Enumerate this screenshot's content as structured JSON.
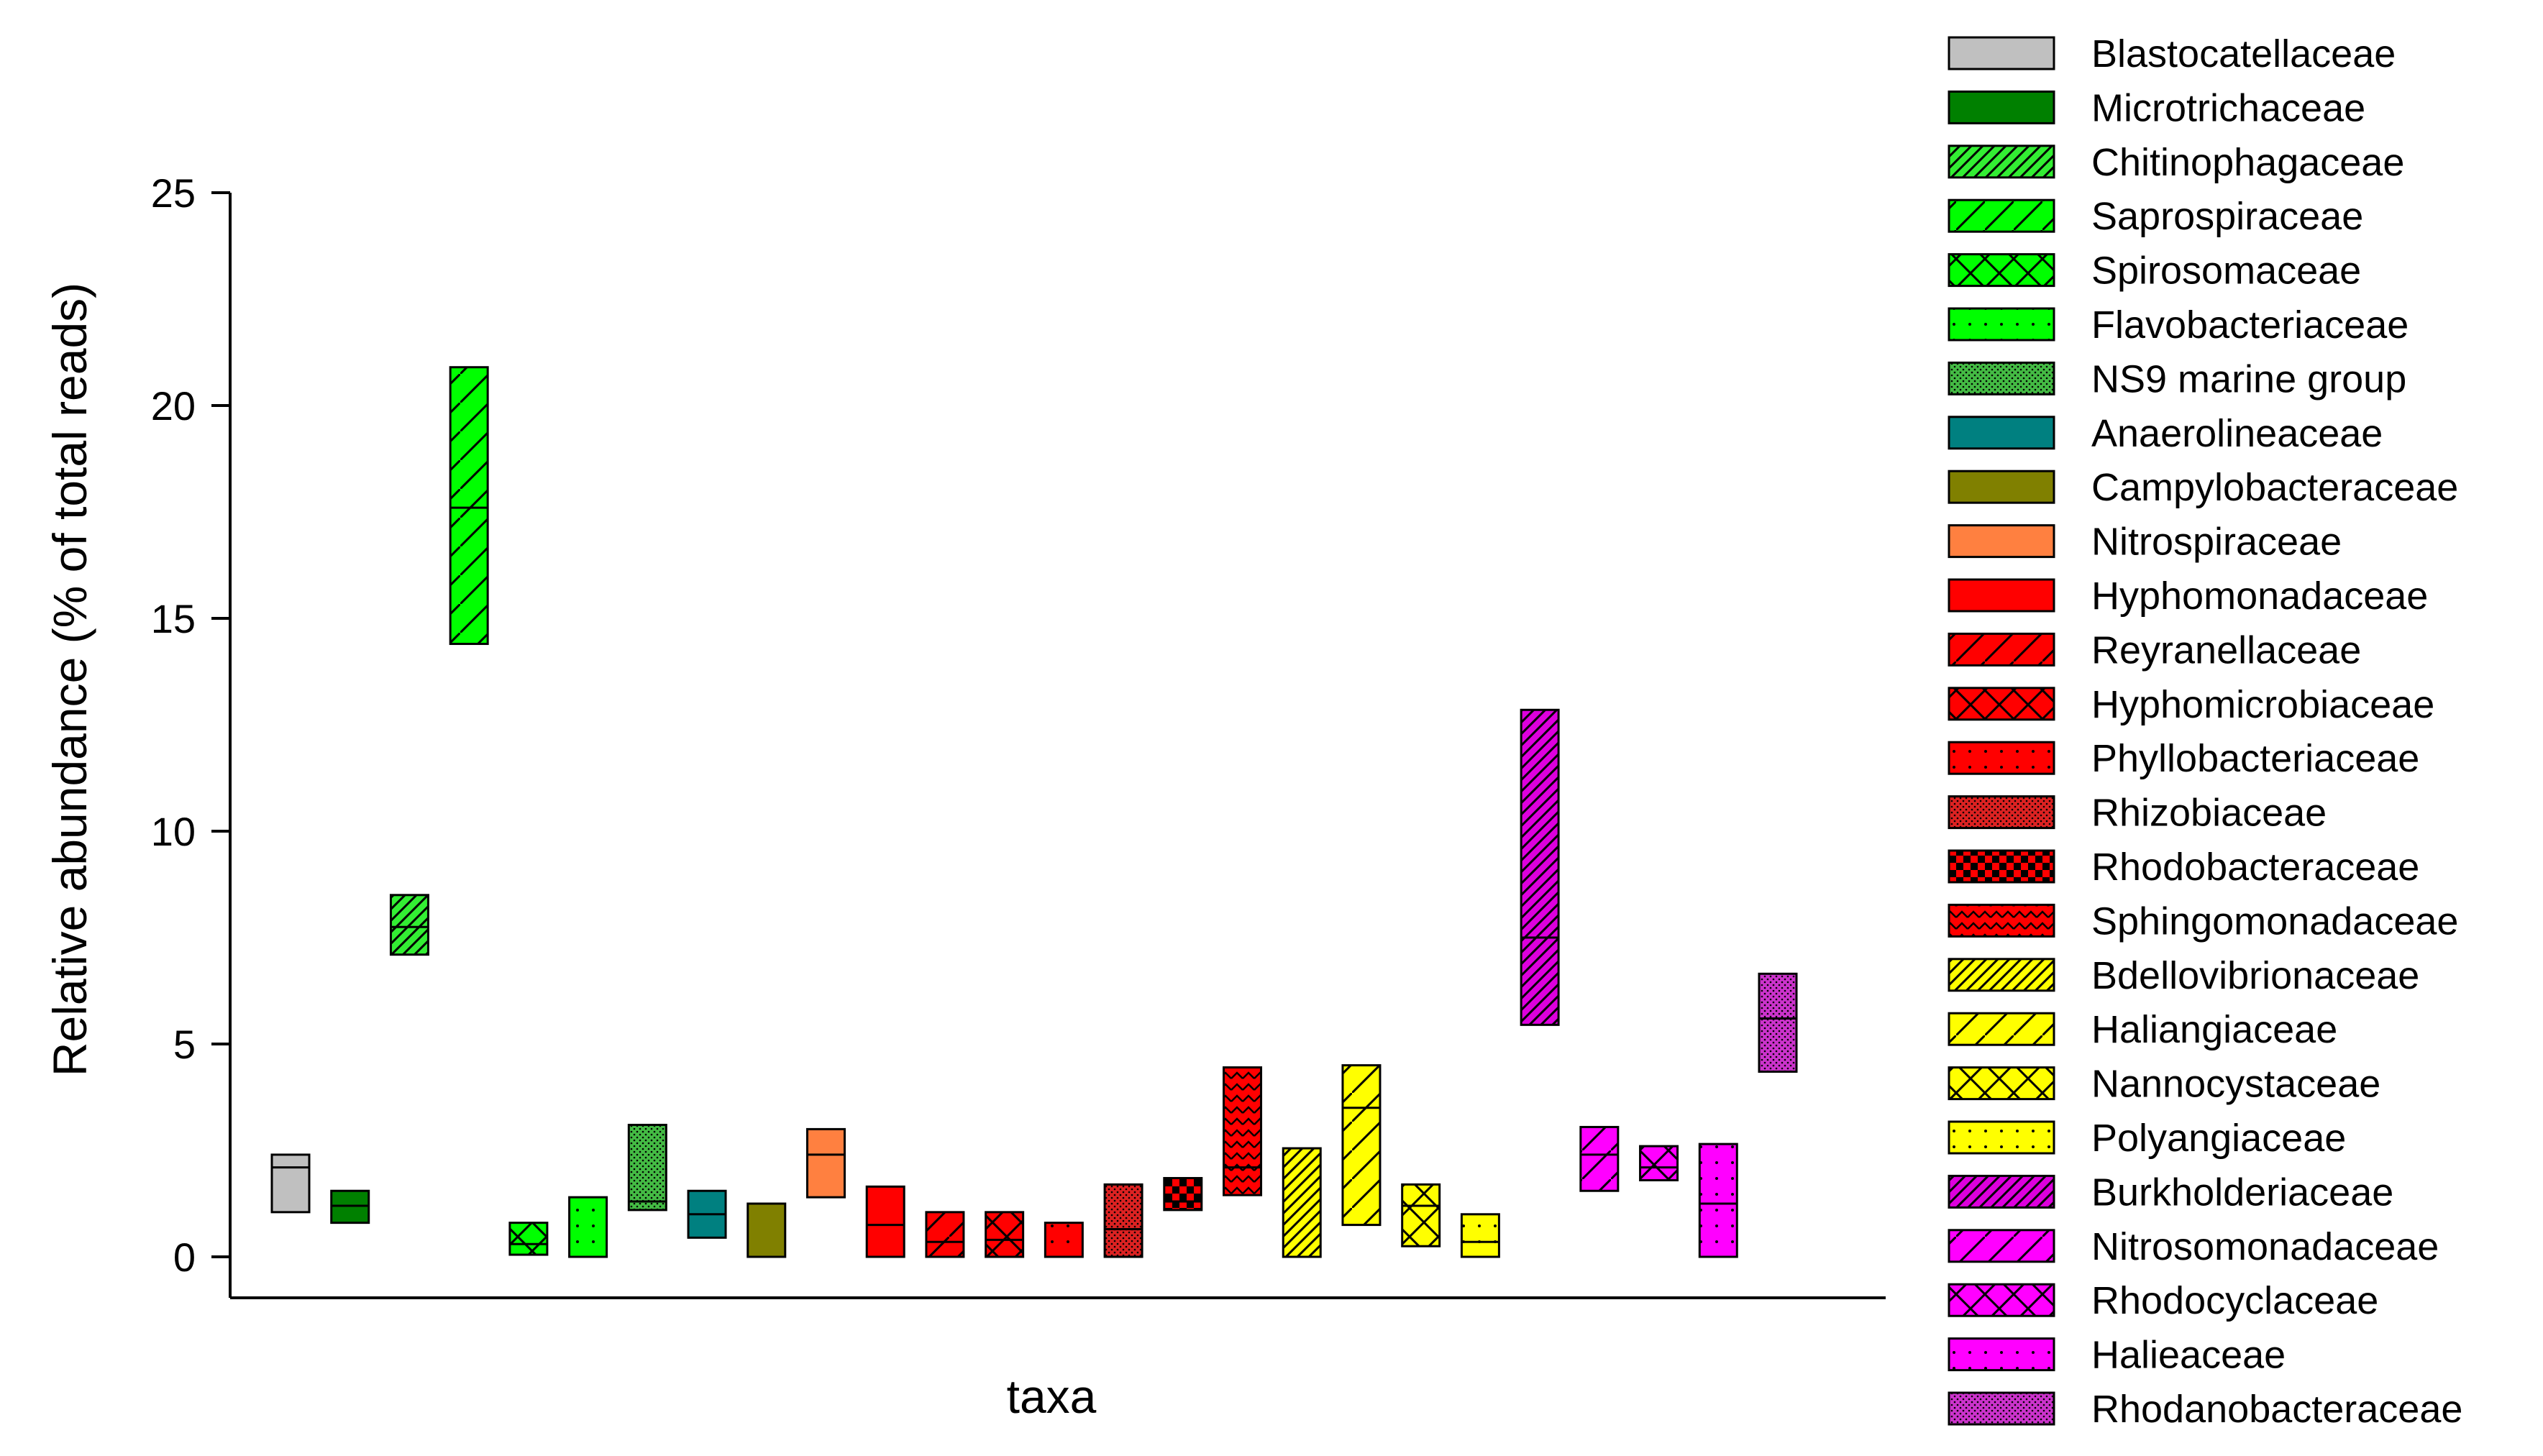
{
  "chart_data": {
    "type": "floating_bar",
    "xlabel": "taxa",
    "ylabel": "Relative abundance (% of total reads)",
    "ylim": [
      0,
      25
    ],
    "yticks": [
      0,
      5,
      10,
      15,
      20,
      25
    ],
    "grid": false,
    "legend_position": "right",
    "series": [
      {
        "name": "Blastocatellaceae",
        "color": "#c0c0c0",
        "pattern": "solid",
        "min": 1.05,
        "median": 2.1,
        "max": 2.4
      },
      {
        "name": "Microtrichaceae",
        "color": "#008000",
        "pattern": "solid",
        "min": 0.8,
        "median": 1.2,
        "max": 1.55
      },
      {
        "name": "Chitinophagaceae",
        "color": "#33ee33",
        "pattern": "dense-diag",
        "min": 7.1,
        "median": 7.75,
        "max": 8.5
      },
      {
        "name": "Saprospiraceae",
        "color": "#00ff00",
        "pattern": "diag",
        "min": 14.4,
        "median": 17.6,
        "max": 20.9
      },
      {
        "name": "Spirosomaceae",
        "color": "#00ff00",
        "pattern": "cross",
        "min": 0.05,
        "median": 0.3,
        "max": 0.8
      },
      {
        "name": "Flavobacteriaceae",
        "color": "#00ff00",
        "pattern": "dots",
        "min": 0.0,
        "median": null,
        "max": 1.4
      },
      {
        "name": "NS9 marine group",
        "color": "#44bb44",
        "pattern": "fine-dots",
        "min": 1.1,
        "median": 1.3,
        "max": 3.1
      },
      {
        "name": "Anaerolineaceae",
        "color": "#008080",
        "pattern": "solid",
        "min": 0.45,
        "median": 1.0,
        "max": 1.55
      },
      {
        "name": "Campylobacteraceae",
        "color": "#808000",
        "pattern": "solid",
        "min": 0.0,
        "median": null,
        "max": 1.25
      },
      {
        "name": "Nitrospiraceae",
        "color": "#ff8040",
        "pattern": "solid",
        "min": 1.4,
        "median": 2.4,
        "max": 3.0
      },
      {
        "name": "Hyphomonadaceae",
        "color": "#ff0000",
        "pattern": "solid",
        "min": 0.0,
        "median": 0.75,
        "max": 1.65
      },
      {
        "name": "Reyranellaceae",
        "color": "#ff0000",
        "pattern": "diag",
        "min": 0.0,
        "median": 0.35,
        "max": 1.05
      },
      {
        "name": "Hyphomicrobiaceae",
        "color": "#ff0000",
        "pattern": "cross",
        "min": 0.0,
        "median": 0.4,
        "max": 1.05
      },
      {
        "name": "Phyllobacteriaceae",
        "color": "#ff0000",
        "pattern": "dots",
        "min": 0.0,
        "median": null,
        "max": 0.8
      },
      {
        "name": "Rhizobiaceae",
        "color": "#dd2222",
        "pattern": "fine-dots",
        "min": 0.0,
        "median": 0.65,
        "max": 1.7
      },
      {
        "name": "Rhodobacteraceae",
        "color": "#ff0000",
        "pattern": "checker",
        "min": 1.1,
        "median": 1.3,
        "max": 1.85
      },
      {
        "name": "Sphingomonadaceae",
        "color": "#ff0000",
        "pattern": "zigzag",
        "min": 1.45,
        "median": 2.1,
        "max": 4.45
      },
      {
        "name": "Bdellovibrionaceae",
        "color": "#ffff00",
        "pattern": "dense-diag",
        "min": 0.0,
        "median": null,
        "max": 2.55
      },
      {
        "name": "Haliangiaceae",
        "color": "#ffff00",
        "pattern": "diag",
        "min": 0.75,
        "median": 3.5,
        "max": 4.5
      },
      {
        "name": "Nannocystaceae",
        "color": "#ffff00",
        "pattern": "cross",
        "min": 0.25,
        "median": 1.2,
        "max": 1.7
      },
      {
        "name": "Polyangiaceae",
        "color": "#ffff00",
        "pattern": "dots",
        "min": 0.0,
        "median": 0.35,
        "max": 1.0
      },
      {
        "name": "Burkholderiaceae",
        "color": "#dd00dd",
        "pattern": "dense-diag",
        "min": 5.45,
        "median": 7.5,
        "max": 12.85
      },
      {
        "name": "Nitrosomonadaceae",
        "color": "#ff00ff",
        "pattern": "diag",
        "min": 1.55,
        "median": 2.4,
        "max": 3.05
      },
      {
        "name": "Rhodocyclaceae",
        "color": "#ff00ff",
        "pattern": "cross",
        "min": 1.8,
        "median": 2.1,
        "max": 2.6
      },
      {
        "name": "Halieaceae",
        "color": "#ff00ff",
        "pattern": "dots",
        "min": 0.0,
        "median": 1.25,
        "max": 2.65
      },
      {
        "name": "Rhodanobacteraceae",
        "color": "#cc33cc",
        "pattern": "fine-dots",
        "min": 4.35,
        "median": 5.6,
        "max": 6.65
      }
    ]
  }
}
